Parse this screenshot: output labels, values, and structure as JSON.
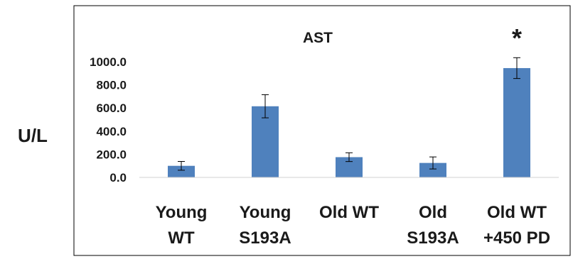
{
  "chart_data": {
    "type": "bar",
    "title": "AST",
    "ylabel": "U/L",
    "xlabel": "",
    "categories": [
      [
        "Young",
        "WT"
      ],
      [
        "Young",
        "S193A"
      ],
      [
        "Old WT"
      ],
      [
        "Old",
        "S193A"
      ],
      [
        "Old WT",
        "+450 PD"
      ]
    ],
    "values": [
      100,
      615,
      175,
      125,
      945
    ],
    "errors": [
      38,
      100,
      38,
      52,
      90
    ],
    "ylim": [
      0,
      1000
    ],
    "yticks": [
      "0.0",
      "200.0",
      "400.0",
      "600.0",
      "800.0",
      "1000.0"
    ],
    "bar_color": "#4f81bd",
    "annotations": [
      {
        "category_index": 4,
        "text": "*"
      }
    ],
    "grid": false,
    "legend": "none"
  }
}
